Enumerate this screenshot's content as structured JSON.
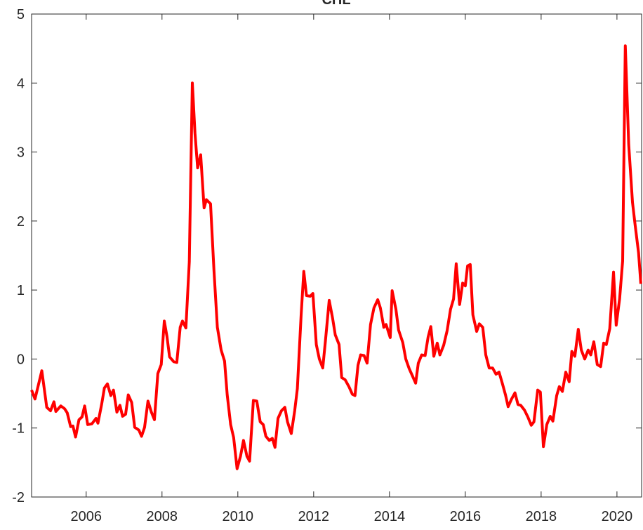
{
  "chart_data": {
    "type": "line",
    "title": "CHL",
    "x": [
      2004.56,
      2004.65,
      2004.83,
      2004.96,
      2005.06,
      2005.15,
      2005.2,
      2005.33,
      2005.43,
      2005.5,
      2005.59,
      2005.65,
      2005.72,
      2005.81,
      2005.89,
      2005.96,
      2006.04,
      2006.15,
      2006.26,
      2006.31,
      2006.41,
      2006.48,
      2006.56,
      2006.65,
      2006.72,
      2006.81,
      2006.89,
      2006.96,
      2007.04,
      2007.11,
      2007.2,
      2007.28,
      2007.39,
      2007.46,
      2007.54,
      2007.63,
      2007.72,
      2007.8,
      2007.89,
      2007.98,
      2008.06,
      2008.13,
      2008.2,
      2008.31,
      2008.39,
      2008.48,
      2008.54,
      2008.63,
      2008.72,
      2008.8,
      2008.87,
      2008.94,
      2009.02,
      2009.11,
      2009.17,
      2009.28,
      2009.37,
      2009.46,
      2009.56,
      2009.65,
      2009.72,
      2009.81,
      2009.89,
      2009.98,
      2010.07,
      2010.15,
      2010.24,
      2010.31,
      2010.41,
      2010.5,
      2010.59,
      2010.67,
      2010.74,
      2010.83,
      2010.91,
      2010.98,
      2011.06,
      2011.15,
      2011.24,
      2011.31,
      2011.41,
      2011.5,
      2011.57,
      2011.67,
      2011.74,
      2011.81,
      2011.91,
      2011.98,
      2012.07,
      2012.15,
      2012.24,
      2012.31,
      2012.41,
      2012.5,
      2012.57,
      2012.67,
      2012.74,
      2012.83,
      2012.93,
      2013.02,
      2013.09,
      2013.17,
      2013.24,
      2013.33,
      2013.41,
      2013.5,
      2013.59,
      2013.69,
      2013.76,
      2013.85,
      2013.91,
      2014.02,
      2014.07,
      2014.17,
      2014.24,
      2014.35,
      2014.43,
      2014.52,
      2014.61,
      2014.69,
      2014.76,
      2014.85,
      2014.94,
      2015.02,
      2015.09,
      2015.17,
      2015.26,
      2015.33,
      2015.43,
      2015.52,
      2015.61,
      2015.69,
      2015.76,
      2015.85,
      2015.93,
      2016,
      2016.06,
      2016.13,
      2016.2,
      2016.3,
      2016.37,
      2016.46,
      2016.54,
      2016.63,
      2016.72,
      2016.81,
      2016.89,
      2016.98,
      2017.06,
      2017.13,
      2017.22,
      2017.31,
      2017.39,
      2017.46,
      2017.56,
      2017.65,
      2017.74,
      2017.81,
      2017.91,
      2017.98,
      2018.06,
      2018.15,
      2018.24,
      2018.31,
      2018.41,
      2018.48,
      2018.56,
      2018.65,
      2018.74,
      2018.81,
      2018.89,
      2018.98,
      2019.06,
      2019.15,
      2019.24,
      2019.31,
      2019.39,
      2019.48,
      2019.57,
      2019.65,
      2019.72,
      2019.81,
      2019.91,
      2019.98,
      2020.07,
      2020.15,
      2020.22,
      2020.31,
      2020.41,
      2020.48,
      2020.57,
      2020.63
    ],
    "series": [
      {
        "color": "#ff0000",
        "values": [
          -0.45,
          -0.58,
          -0.17,
          -0.7,
          -0.75,
          -0.62,
          -0.76,
          -0.68,
          -0.72,
          -0.78,
          -0.98,
          -0.97,
          -1.13,
          -0.88,
          -0.84,
          -0.68,
          -0.95,
          -0.94,
          -0.86,
          -0.93,
          -0.65,
          -0.42,
          -0.36,
          -0.53,
          -0.45,
          -0.77,
          -0.67,
          -0.83,
          -0.8,
          -0.52,
          -0.63,
          -0.99,
          -1.03,
          -1.12,
          -0.99,
          -0.61,
          -0.77,
          -0.88,
          -0.21,
          -0.08,
          0.55,
          0.33,
          0.03,
          -0.04,
          -0.05,
          0.46,
          0.55,
          0.45,
          1.41,
          4.0,
          3.27,
          2.77,
          2.96,
          2.19,
          2.31,
          2.25,
          1.29,
          0.46,
          0.13,
          -0.03,
          -0.52,
          -0.95,
          -1.14,
          -1.59,
          -1.41,
          -1.18,
          -1.41,
          -1.48,
          -0.6,
          -0.61,
          -0.91,
          -0.95,
          -1.12,
          -1.18,
          -1.15,
          -1.28,
          -0.86,
          -0.75,
          -0.7,
          -0.91,
          -1.08,
          -0.75,
          -0.43,
          0.64,
          1.27,
          0.92,
          0.91,
          0.95,
          0.21,
          0,
          -0.13,
          0.26,
          0.85,
          0.59,
          0.35,
          0.21,
          -0.27,
          -0.3,
          -0.4,
          -0.51,
          -0.53,
          -0.09,
          0.06,
          0.05,
          -0.06,
          0.5,
          0.74,
          0.86,
          0.74,
          0.46,
          0.5,
          0.31,
          0.99,
          0.72,
          0.42,
          0.24,
          0,
          -0.14,
          -0.25,
          -0.35,
          -0.06,
          0.06,
          0.05,
          0.32,
          0.47,
          0.04,
          0.23,
          0.06,
          0.2,
          0.41,
          0.72,
          0.87,
          1.38,
          0.79,
          1.1,
          1.06,
          1.35,
          1.37,
          0.64,
          0.4,
          0.51,
          0.46,
          0.06,
          -0.13,
          -0.13,
          -0.22,
          -0.19,
          -0.36,
          -0.52,
          -0.69,
          -0.58,
          -0.49,
          -0.66,
          -0.67,
          -0.74,
          -0.84,
          -0.96,
          -0.91,
          -0.45,
          -0.48,
          -1.27,
          -0.95,
          -0.83,
          -0.9,
          -0.53,
          -0.4,
          -0.47,
          -0.19,
          -0.33,
          0.11,
          0.04,
          0.43,
          0.13,
          0,
          0.13,
          0.06,
          0.25,
          -0.08,
          -0.11,
          0.23,
          0.21,
          0.44,
          1.26,
          0.49,
          0.87,
          1.42,
          4.54,
          3.11,
          2.27,
          1.94,
          1.54,
          1.09
        ]
      }
    ],
    "xlim": [
      2004.56,
      2020.65
    ],
    "xticks": [
      2006,
      2008,
      2010,
      2012,
      2014,
      2016,
      2018,
      2020
    ],
    "ylim": [
      -2,
      5
    ],
    "yticks": [
      -2,
      -1,
      0,
      1,
      2,
      3,
      4,
      5
    ]
  }
}
